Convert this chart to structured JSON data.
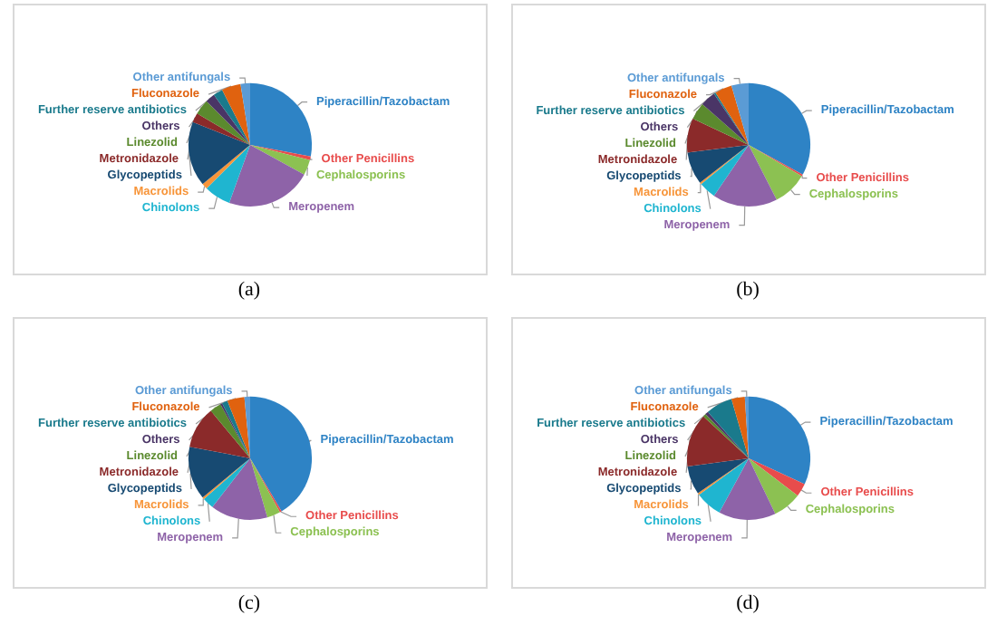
{
  "chart_data": [
    {
      "type": "pie",
      "title": "(a)",
      "categories": [
        "Piperacillin/Tazobactam",
        "Other Penicillins",
        "Cephalosporins",
        "Meropenem",
        "Chinolons",
        "Macrolids",
        "Glycopeptids",
        "Metronidazole",
        "Linezolid",
        "Others",
        "Further reserve antibiotics",
        "Fluconazole",
        "Other antifungals"
      ],
      "values": [
        28,
        1,
        4,
        22.5,
        7,
        1.5,
        17,
        2.5,
        4,
        2.5,
        2.5,
        5,
        2.5
      ],
      "colors": [
        "#2e83c5",
        "#e84c4c",
        "#8cc152",
        "#8e63a8",
        "#1fb5d0",
        "#f7953a",
        "#174a72",
        "#8b2a2a",
        "#5b8a2e",
        "#4a3566",
        "#1a7a8c",
        "#e0620f",
        "#5b9bd5"
      ]
    },
    {
      "type": "pie",
      "title": "(b)",
      "categories": [
        "Piperacillin/Tazobactam",
        "Other Penicillins",
        "Cephalosporins",
        "Meropenem",
        "Chinolons",
        "Macrolids",
        "Glycopeptids",
        "Metronidazole",
        "Linezolid",
        "Others",
        "Further reserve antibiotics",
        "Fluconazole",
        "Other antifungals"
      ],
      "values": [
        33,
        0.5,
        9,
        17,
        4.5,
        0.5,
        8.5,
        9,
        4.5,
        4,
        0.5,
        4.5,
        4.5
      ],
      "colors": [
        "#2e83c5",
        "#e84c4c",
        "#8cc152",
        "#8e63a8",
        "#1fb5d0",
        "#f7953a",
        "#174a72",
        "#8b2a2a",
        "#5b8a2e",
        "#4a3566",
        "#1a7a8c",
        "#e0620f",
        "#5b9bd5"
      ]
    },
    {
      "type": "pie",
      "title": "(c)",
      "categories": [
        "Piperacillin/Tazobactam",
        "Other Penicillins",
        "Cephalosporins",
        "Meropenem",
        "Chinolons",
        "Macrolids",
        "Glycopeptids",
        "Metronidazole",
        "Linezolid",
        "Others",
        "Further reserve antibiotics",
        "Fluconazole",
        "Other antifungals"
      ],
      "values": [
        41.5,
        0.5,
        3.5,
        15,
        3,
        0.5,
        14,
        11,
        3,
        0.5,
        1.5,
        4.5,
        1.5
      ],
      "colors": [
        "#2e83c5",
        "#e84c4c",
        "#8cc152",
        "#8e63a8",
        "#1fb5d0",
        "#f7953a",
        "#174a72",
        "#8b2a2a",
        "#5b8a2e",
        "#4a3566",
        "#1a7a8c",
        "#e0620f",
        "#5b9bd5"
      ]
    },
    {
      "type": "pie",
      "title": "(d)",
      "categories": [
        "Piperacillin/Tazobactam",
        "Other Penicillins",
        "Cephalosporins",
        "Meropenem",
        "Chinolons",
        "Macrolids",
        "Glycopeptids",
        "Metronidazole",
        "Linezolid",
        "Others",
        "Further reserve antibiotics",
        "Fluconazole",
        "Other antifungals"
      ],
      "values": [
        31.9,
        3.5,
        7.5,
        15,
        7,
        0.5,
        7.5,
        14,
        0.8,
        0.8,
        7,
        3.5,
        1
      ],
      "colors": [
        "#2e83c5",
        "#e84c4c",
        "#8cc152",
        "#8e63a8",
        "#1fb5d0",
        "#f7953a",
        "#174a72",
        "#8b2a2a",
        "#5b8a2e",
        "#4a3566",
        "#1a7a8c",
        "#e0620f",
        "#5b9bd5"
      ]
    }
  ]
}
